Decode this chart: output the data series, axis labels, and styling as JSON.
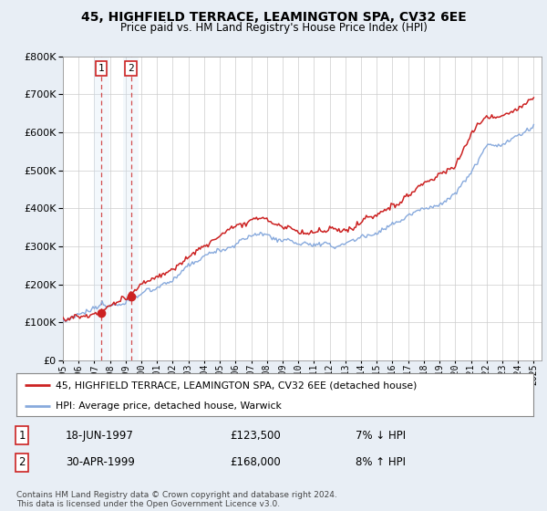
{
  "title_line1": "45, HIGHFIELD TERRACE, LEAMINGTON SPA, CV32 6EE",
  "title_line2": "Price paid vs. HM Land Registry's House Price Index (HPI)",
  "background_color": "#e8eef5",
  "plot_bg_color": "#ffffff",
  "sale1_date": 1997.46,
  "sale1_price": 123500,
  "sale1_label": "1",
  "sale2_date": 1999.33,
  "sale2_price": 168000,
  "sale2_label": "2",
  "legend_label_red": "45, HIGHFIELD TERRACE, LEAMINGTON SPA, CV32 6EE (detached house)",
  "legend_label_blue": "HPI: Average price, detached house, Warwick",
  "table_row1": [
    "1",
    "18-JUN-1997",
    "£123,500",
    "7% ↓ HPI"
  ],
  "table_row2": [
    "2",
    "30-APR-1999",
    "£168,000",
    "8% ↑ HPI"
  ],
  "footer": "Contains HM Land Registry data © Crown copyright and database right 2024.\nThis data is licensed under the Open Government Licence v3.0.",
  "red_color": "#cc2222",
  "blue_color": "#88aadd",
  "shade_color": "#d0e4f7",
  "dashed_color": "#cc2222",
  "ylim_max": 800000,
  "xmin": 1995.0,
  "xmax": 2025.5,
  "yticks": [
    0,
    100000,
    200000,
    300000,
    400000,
    500000,
    600000,
    700000,
    800000
  ]
}
